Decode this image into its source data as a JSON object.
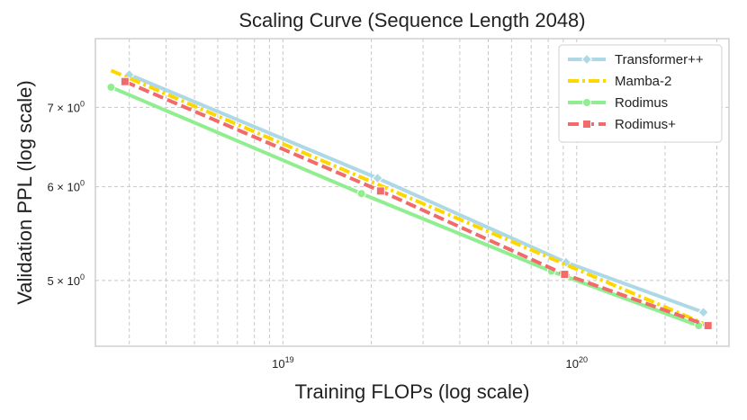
{
  "chart_data": {
    "type": "line",
    "title": "Scaling Curve (Sequence Length 2048)",
    "xlabel": "Training FLOPs (log scale)",
    "ylabel": "Validation PPL (log scale)",
    "xscale": "log",
    "yscale": "log",
    "xlim": [
      2.3e+18,
      3.3e+20
    ],
    "ylim": [
      4.4,
      8.0
    ],
    "grid": true,
    "legend_position": "top-right",
    "x_major_ticks": [
      {
        "value": 1e+19,
        "label": "10",
        "exp": "19"
      },
      {
        "value": 1e+20,
        "label": "10",
        "exp": "20"
      }
    ],
    "x_minor_ticks": [
      3e+18,
      4e+18,
      5e+18,
      6e+18,
      7e+18,
      8e+18,
      9e+18,
      2e+19,
      3e+19,
      4e+19,
      5e+19,
      6e+19,
      7e+19,
      8e+19,
      9e+19,
      2e+20,
      3e+20
    ],
    "y_ticks": [
      {
        "value": 5,
        "label": "5 × 10",
        "exp": "0"
      },
      {
        "value": 6,
        "label": "6 × 10",
        "exp": "0"
      },
      {
        "value": 7,
        "label": "7 × 10",
        "exp": "0"
      }
    ],
    "y_minor_ticks": [],
    "series": [
      {
        "name": "Transformer++",
        "color": "#add8e6",
        "marker": "diamond",
        "dash": "solid",
        "lineWidth": 4,
        "x": [
          3e+18,
          2.1e+19,
          9.2e+19,
          2.7e+20
        ],
        "y": [
          7.46,
          6.1,
          5.18,
          4.7
        ]
      },
      {
        "name": "Mamba-2",
        "color": "#ffd700",
        "marker": "none",
        "dash": "dashdot",
        "lineWidth": 4,
        "x": [
          2.6e+18,
          2.7e+20
        ],
        "y": [
          7.52,
          4.6
        ]
      },
      {
        "name": "Rodimus",
        "color": "#90ee90",
        "marker": "circle",
        "dash": "solid",
        "lineWidth": 4,
        "x": [
          2.6e+18,
          1.85e+19,
          8.2e+19,
          2.6e+20
        ],
        "y": [
          7.28,
          5.92,
          5.09,
          4.58
        ]
      },
      {
        "name": "Rodimus+",
        "color": "#f26b6b",
        "marker": "square",
        "dash": "dashed",
        "lineWidth": 4,
        "x": [
          2.9e+18,
          2.15e+19,
          9.1e+19,
          2.8e+20
        ],
        "y": [
          7.36,
          5.95,
          5.06,
          4.58
        ]
      }
    ]
  }
}
